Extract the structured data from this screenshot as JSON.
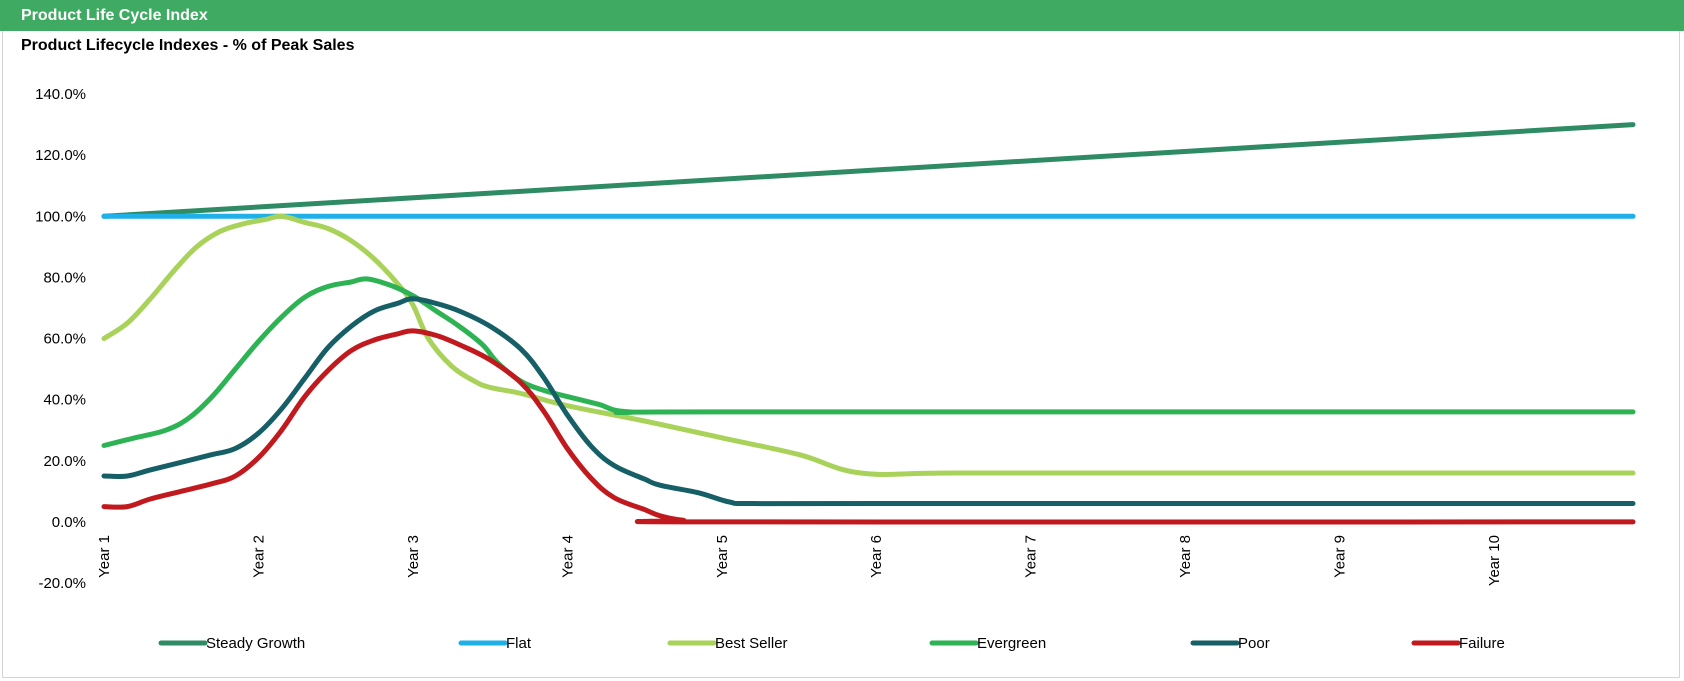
{
  "header": {
    "title": "Product Life Cycle Index"
  },
  "chart_data": {
    "type": "line",
    "title": "Product Lifecycle Indexes - % of Peak Sales",
    "xlabel": "",
    "ylabel": "",
    "ylim": [
      -20,
      140
    ],
    "yticks": [
      -20,
      0,
      20,
      40,
      60,
      80,
      100,
      120,
      140
    ],
    "ytick_labels": [
      "-20.0%",
      "0.0%",
      "20.0%",
      "40.0%",
      "60.0%",
      "80.0%",
      "100.0%",
      "120.0%",
      "140.0%"
    ],
    "xlim": [
      1,
      10.9
    ],
    "xticks": [
      1,
      2,
      3,
      4,
      5,
      6,
      7,
      8,
      9,
      10
    ],
    "xtick_labels": [
      "Year 1",
      "Year 2",
      "Year 3",
      "Year 4",
      "Year 5",
      "Year 6",
      "Year 7",
      "Year 8",
      "Year 9",
      "Year 10"
    ],
    "grid": false,
    "legend_position": "bottom",
    "series": [
      {
        "name": "Steady Growth",
        "color": "#2e8b63",
        "points": [
          [
            1,
            100
          ],
          [
            10.9,
            130
          ]
        ]
      },
      {
        "name": "Flat",
        "color": "#1fb0e8",
        "points": [
          [
            1,
            100
          ],
          [
            10.9,
            100
          ]
        ]
      },
      {
        "name": "Best Seller",
        "color": "#a9d25a",
        "points": [
          [
            1,
            60
          ],
          [
            1.15,
            65
          ],
          [
            1.3,
            73
          ],
          [
            1.45,
            82
          ],
          [
            1.6,
            90
          ],
          [
            1.75,
            95
          ],
          [
            1.9,
            97.5
          ],
          [
            2.05,
            99
          ],
          [
            2.15,
            100
          ],
          [
            2.3,
            98
          ],
          [
            2.45,
            96
          ],
          [
            2.6,
            92
          ],
          [
            2.75,
            86
          ],
          [
            2.9,
            78
          ],
          [
            3.0,
            71
          ],
          [
            3.1,
            60
          ],
          [
            3.25,
            51
          ],
          [
            3.4,
            46
          ],
          [
            3.5,
            44
          ],
          [
            3.7,
            42
          ],
          [
            4.0,
            38
          ],
          [
            4.5,
            33
          ],
          [
            5.0,
            27.5
          ],
          [
            5.5,
            22
          ],
          [
            5.9,
            16
          ],
          [
            6.5,
            16
          ],
          [
            8.0,
            16
          ],
          [
            10.9,
            16
          ]
        ]
      },
      {
        "name": "Evergreen",
        "color": "#2db353",
        "points": [
          [
            1,
            25
          ],
          [
            1.2,
            27.5
          ],
          [
            1.4,
            30
          ],
          [
            1.55,
            34
          ],
          [
            1.7,
            41
          ],
          [
            1.85,
            50
          ],
          [
            2.0,
            59
          ],
          [
            2.15,
            67
          ],
          [
            2.3,
            73.5
          ],
          [
            2.45,
            77
          ],
          [
            2.6,
            78.5
          ],
          [
            2.7,
            79.5
          ],
          [
            2.85,
            77.5
          ],
          [
            3.0,
            74
          ],
          [
            3.15,
            69
          ],
          [
            3.3,
            64
          ],
          [
            3.45,
            58
          ],
          [
            3.55,
            52
          ],
          [
            3.7,
            46
          ],
          [
            3.85,
            43
          ],
          [
            4.0,
            41
          ],
          [
            4.2,
            38.5
          ],
          [
            4.4,
            36
          ],
          [
            5.0,
            36
          ],
          [
            10.9,
            36
          ]
        ]
      },
      {
        "name": "Poor",
        "color": "#165f66",
        "points": [
          [
            1,
            15
          ],
          [
            1.15,
            15
          ],
          [
            1.3,
            17
          ],
          [
            1.5,
            19.5
          ],
          [
            1.7,
            22
          ],
          [
            1.85,
            24
          ],
          [
            2.0,
            29
          ],
          [
            2.15,
            37
          ],
          [
            2.3,
            47
          ],
          [
            2.45,
            57
          ],
          [
            2.6,
            64
          ],
          [
            2.75,
            69
          ],
          [
            2.9,
            71.5
          ],
          [
            3.0,
            73
          ],
          [
            3.15,
            71.5
          ],
          [
            3.3,
            69
          ],
          [
            3.5,
            64
          ],
          [
            3.7,
            56.5
          ],
          [
            3.85,
            47
          ],
          [
            4.0,
            35
          ],
          [
            4.15,
            25
          ],
          [
            4.3,
            18.5
          ],
          [
            4.5,
            14
          ],
          [
            4.6,
            12
          ],
          [
            4.85,
            9.5
          ],
          [
            5.05,
            6.5
          ],
          [
            5.2,
            6
          ],
          [
            6.0,
            6
          ],
          [
            10.9,
            6
          ]
        ]
      },
      {
        "name": "Failure",
        "color": "#c11a1e",
        "points": [
          [
            1,
            5
          ],
          [
            1.15,
            5
          ],
          [
            1.3,
            7.5
          ],
          [
            1.5,
            10
          ],
          [
            1.7,
            12.5
          ],
          [
            1.85,
            15
          ],
          [
            2.0,
            21
          ],
          [
            2.15,
            30
          ],
          [
            2.3,
            41
          ],
          [
            2.45,
            49.5
          ],
          [
            2.6,
            56
          ],
          [
            2.75,
            59.5
          ],
          [
            2.9,
            61.5
          ],
          [
            3.0,
            62.5
          ],
          [
            3.15,
            61
          ],
          [
            3.3,
            58
          ],
          [
            3.5,
            53
          ],
          [
            3.7,
            45.5
          ],
          [
            3.85,
            36
          ],
          [
            4.0,
            24
          ],
          [
            4.15,
            14.5
          ],
          [
            4.3,
            8
          ],
          [
            4.5,
            4
          ],
          [
            4.6,
            2
          ],
          [
            4.75,
            0.5
          ],
          [
            5.0,
            0
          ],
          [
            10.9,
            0
          ]
        ]
      }
    ]
  }
}
